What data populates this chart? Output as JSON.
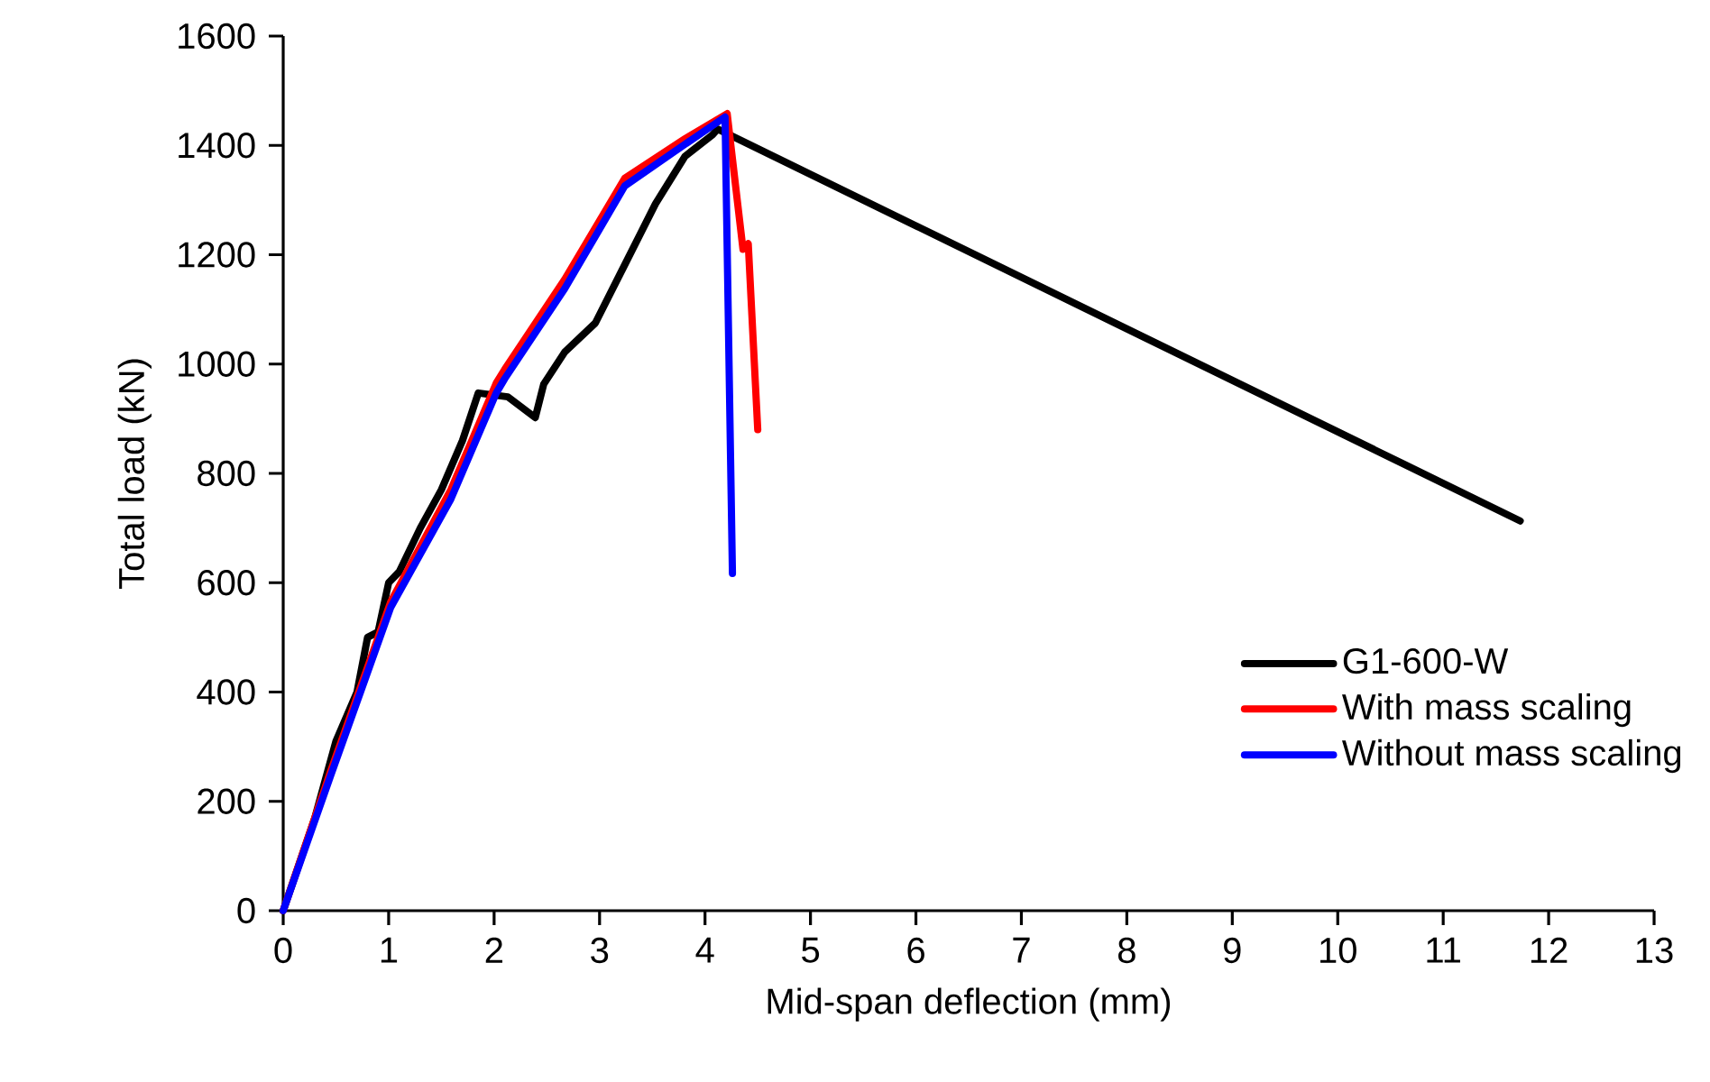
{
  "chart_data": {
    "type": "line",
    "xlabel": "Mid-span deflection (mm)",
    "ylabel": "Total load (kN)",
    "xlim": [
      0,
      13
    ],
    "xticks": [
      0,
      1,
      2,
      3,
      4,
      5,
      6,
      7,
      8,
      9,
      10,
      11,
      12,
      13
    ],
    "ylim": [
      0,
      1600
    ],
    "yticks": [
      0,
      200,
      400,
      600,
      800,
      1000,
      1200,
      1400,
      1600
    ],
    "legend": "right",
    "marker": "none",
    "line_style": "solid",
    "series": [
      {
        "name": "G1-600-W",
        "color": "#000000",
        "x": [
          0,
          0.3,
          0.5,
          0.7,
          0.8,
          0.9,
          1.0,
          1.1,
          1.3,
          1.5,
          1.7,
          1.85,
          2.13,
          2.39,
          2.47,
          2.67,
          2.96,
          3.24,
          3.53,
          3.81,
          4.07,
          4.12,
          11.73
        ],
        "values": [
          0,
          170,
          310,
          400,
          500,
          510,
          600,
          620,
          700,
          770,
          860,
          947,
          940,
          902,
          963,
          1022,
          1075,
          1182,
          1293,
          1380,
          1419,
          1430,
          713
        ]
      },
      {
        "name": "With mass scaling",
        "color": "#ff0000",
        "x": [
          0,
          0.45,
          1.02,
          1.59,
          2.02,
          2.1,
          2.67,
          3.24,
          3.81,
          4.21,
          4.36,
          4.41,
          4.5
        ],
        "values": [
          0,
          255,
          565,
          770,
          965,
          990,
          1155,
          1340,
          1412,
          1458,
          1210,
          1220,
          880
        ]
      },
      {
        "name": "Without mass scaling",
        "color": "#0000ff",
        "x": [
          0,
          0.45,
          1.02,
          1.59,
          2.02,
          2.1,
          2.67,
          3.24,
          3.81,
          4.19,
          4.26
        ],
        "values": [
          0,
          247,
          555,
          753,
          947,
          973,
          1138,
          1326,
          1402,
          1452,
          617
        ]
      }
    ]
  }
}
